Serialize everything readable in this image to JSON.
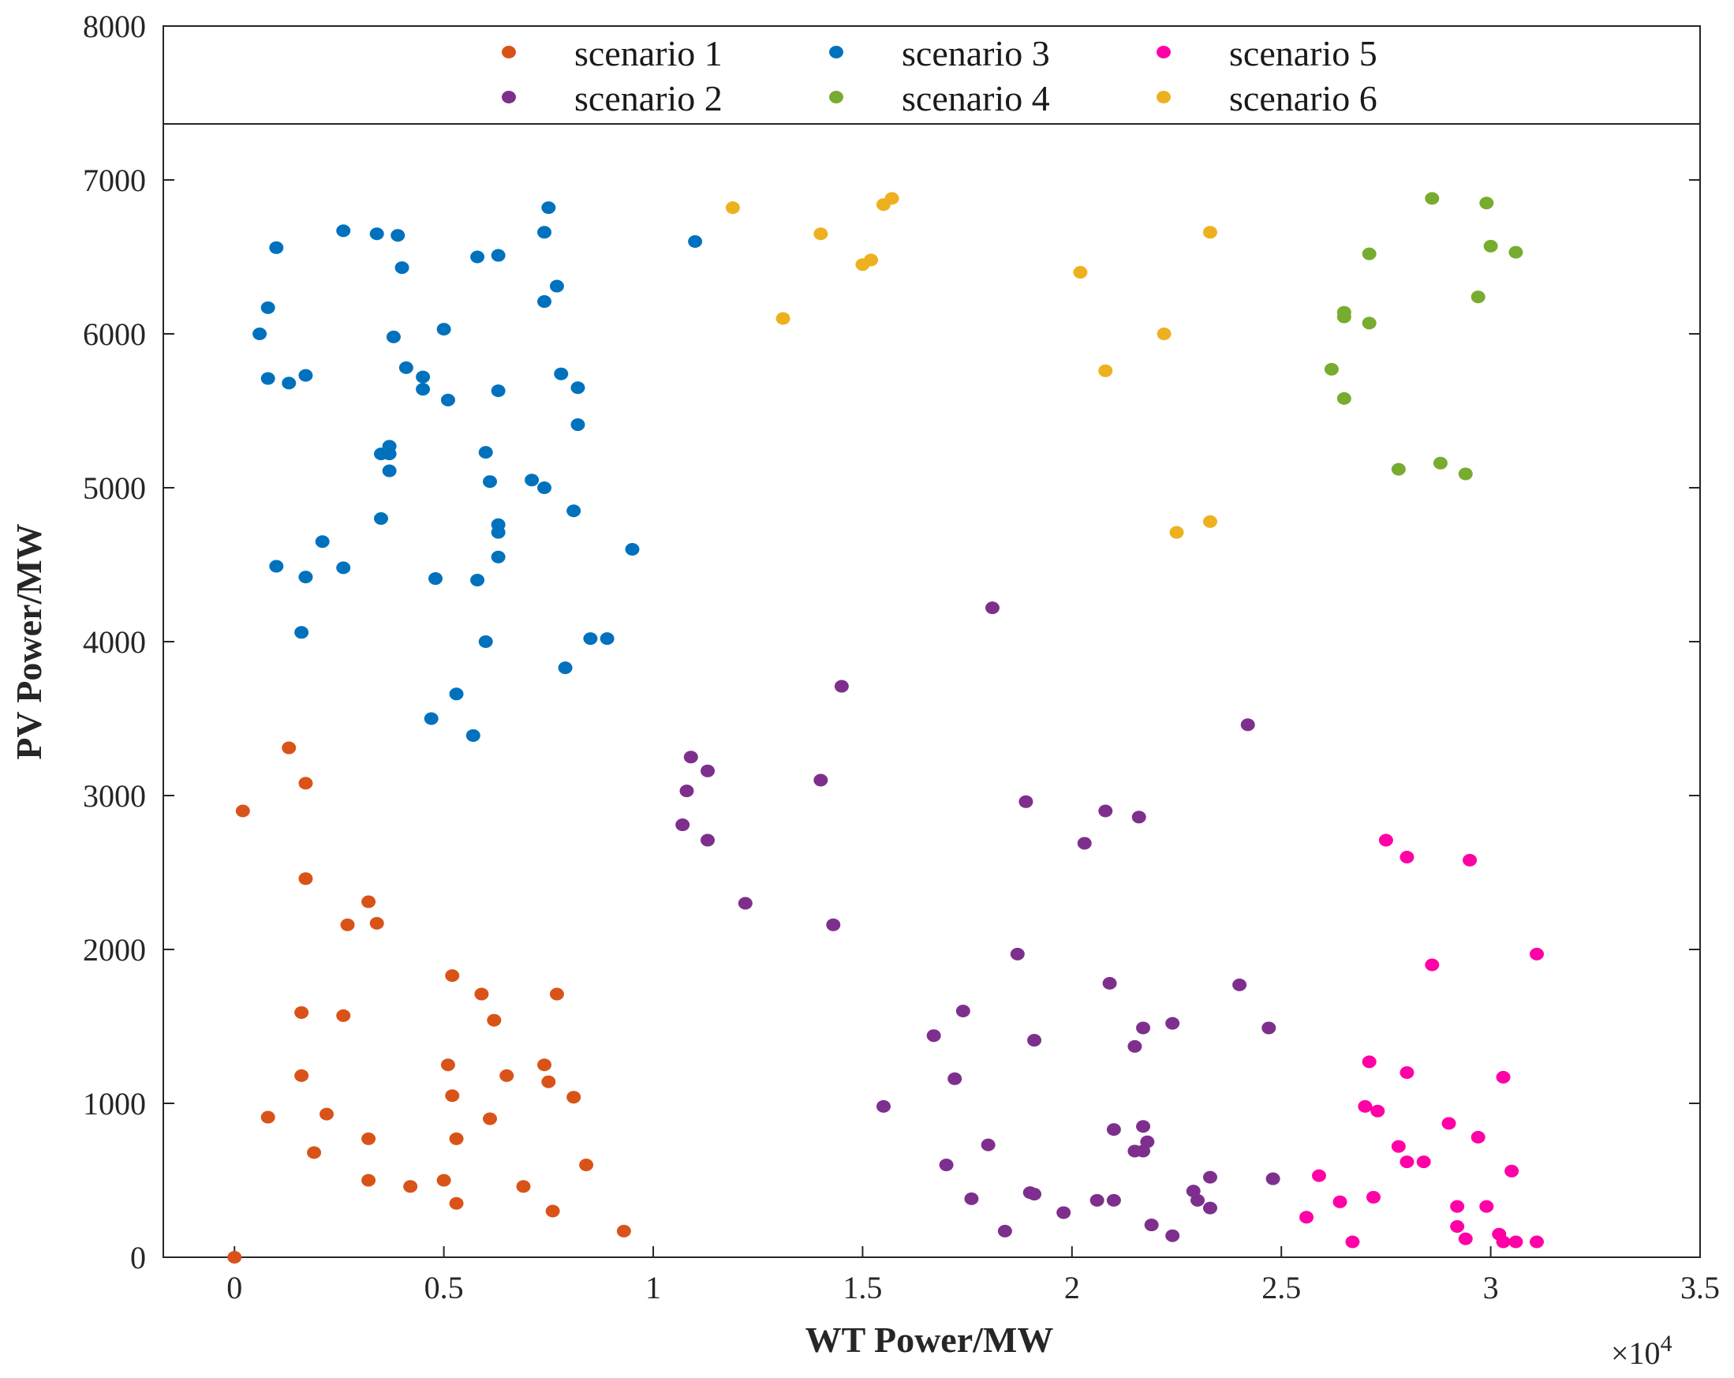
{
  "chart_data": {
    "type": "scatter",
    "title": "",
    "xlabel": "WT Power/MW",
    "ylabel": "PV Power/MW",
    "x_scale_label": "×10",
    "x_scale_exponent": "4",
    "xlim": [
      -0.17,
      3.5
    ],
    "ylim": [
      0,
      8000
    ],
    "x_ticks": [
      0,
      0.5,
      1,
      1.5,
      2,
      2.5,
      3,
      3.5
    ],
    "x_tick_labels": [
      "0",
      "0.5",
      "1",
      "1.5",
      "2",
      "2.5",
      "3",
      "3.5"
    ],
    "y_ticks": [
      0,
      1000,
      2000,
      3000,
      4000,
      5000,
      6000,
      7000,
      8000
    ],
    "y_tick_labels": [
      "0",
      "1000",
      "2000",
      "3000",
      "4000",
      "5000",
      "6000",
      "7000",
      "8000"
    ],
    "legend_position": "top",
    "series": [
      {
        "name": "scenario 1",
        "color": "#D95319",
        "points": [
          [
            0.0,
            0
          ],
          [
            0.02,
            2900
          ],
          [
            0.08,
            910
          ],
          [
            0.13,
            3310
          ],
          [
            0.16,
            1590
          ],
          [
            0.16,
            1180
          ],
          [
            0.17,
            3080
          ],
          [
            0.17,
            2460
          ],
          [
            0.19,
            680
          ],
          [
            0.22,
            930
          ],
          [
            0.26,
            1570
          ],
          [
            0.27,
            2160
          ],
          [
            0.32,
            2310
          ],
          [
            0.32,
            770
          ],
          [
            0.32,
            500
          ],
          [
            0.34,
            2170
          ],
          [
            0.42,
            460
          ],
          [
            0.5,
            500
          ],
          [
            0.51,
            1250
          ],
          [
            0.52,
            1830
          ],
          [
            0.52,
            1050
          ],
          [
            0.53,
            770
          ],
          [
            0.53,
            350
          ],
          [
            0.59,
            1710
          ],
          [
            0.61,
            900
          ],
          [
            0.62,
            1540
          ],
          [
            0.65,
            1180
          ],
          [
            0.69,
            460
          ],
          [
            0.74,
            1250
          ],
          [
            0.75,
            1140
          ],
          [
            0.76,
            300
          ],
          [
            0.77,
            1710
          ],
          [
            0.81,
            1040
          ],
          [
            0.84,
            600
          ],
          [
            0.93,
            170
          ]
        ]
      },
      {
        "name": "scenario 2",
        "color": "#7E2F8E",
        "points": [
          [
            1.07,
            2810
          ],
          [
            1.08,
            3030
          ],
          [
            1.09,
            3250
          ],
          [
            1.13,
            3160
          ],
          [
            1.13,
            2710
          ],
          [
            1.22,
            2300
          ],
          [
            1.4,
            3100
          ],
          [
            1.43,
            2160
          ],
          [
            1.45,
            3710
          ],
          [
            1.55,
            980
          ],
          [
            1.67,
            1440
          ],
          [
            1.7,
            600
          ],
          [
            1.72,
            1160
          ],
          [
            1.74,
            1600
          ],
          [
            1.76,
            380
          ],
          [
            1.8,
            730
          ],
          [
            1.81,
            4220
          ],
          [
            1.84,
            170
          ],
          [
            1.87,
            1970
          ],
          [
            1.89,
            2960
          ],
          [
            1.9,
            420
          ],
          [
            1.91,
            1410
          ],
          [
            1.91,
            410
          ],
          [
            1.98,
            290
          ],
          [
            2.03,
            2690
          ],
          [
            2.06,
            370
          ],
          [
            2.08,
            2900
          ],
          [
            2.09,
            1780
          ],
          [
            2.1,
            830
          ],
          [
            2.1,
            370
          ],
          [
            2.15,
            1370
          ],
          [
            2.16,
            2860
          ],
          [
            2.17,
            1490
          ],
          [
            2.17,
            850
          ],
          [
            2.17,
            690
          ],
          [
            2.18,
            750
          ],
          [
            2.19,
            210
          ],
          [
            2.24,
            1520
          ],
          [
            2.24,
            140
          ],
          [
            2.29,
            430
          ],
          [
            2.3,
            370
          ],
          [
            2.33,
            520
          ],
          [
            2.33,
            320
          ],
          [
            2.4,
            1770
          ],
          [
            2.42,
            3460
          ],
          [
            2.47,
            1490
          ],
          [
            2.48,
            510
          ],
          [
            2.15,
            690
          ]
        ]
      },
      {
        "name": "scenario 3",
        "color": "#0072BD",
        "points": [
          [
            0.06,
            6000
          ],
          [
            0.08,
            6170
          ],
          [
            0.08,
            5710
          ],
          [
            0.1,
            6560
          ],
          [
            0.1,
            4490
          ],
          [
            0.13,
            5680
          ],
          [
            0.16,
            4060
          ],
          [
            0.17,
            5730
          ],
          [
            0.17,
            4420
          ],
          [
            0.21,
            4650
          ],
          [
            0.26,
            6670
          ],
          [
            0.26,
            4480
          ],
          [
            0.34,
            6650
          ],
          [
            0.35,
            5220
          ],
          [
            0.35,
            4800
          ],
          [
            0.37,
            5270
          ],
          [
            0.37,
            5220
          ],
          [
            0.37,
            5110
          ],
          [
            0.38,
            5980
          ],
          [
            0.39,
            6640
          ],
          [
            0.4,
            6430
          ],
          [
            0.41,
            5780
          ],
          [
            0.45,
            5720
          ],
          [
            0.45,
            5640
          ],
          [
            0.47,
            3500
          ],
          [
            0.48,
            4410
          ],
          [
            0.5,
            6030
          ],
          [
            0.51,
            5570
          ],
          [
            0.53,
            3660
          ],
          [
            0.57,
            3390
          ],
          [
            0.58,
            4400
          ],
          [
            0.58,
            6500
          ],
          [
            0.6,
            5230
          ],
          [
            0.6,
            4000
          ],
          [
            0.61,
            5040
          ],
          [
            0.63,
            6510
          ],
          [
            0.63,
            5630
          ],
          [
            0.63,
            4760
          ],
          [
            0.63,
            4710
          ],
          [
            0.63,
            4550
          ],
          [
            0.71,
            5050
          ],
          [
            0.74,
            6660
          ],
          [
            0.74,
            6210
          ],
          [
            0.74,
            5000
          ],
          [
            0.75,
            6820
          ],
          [
            0.77,
            6310
          ],
          [
            0.78,
            5740
          ],
          [
            0.79,
            3830
          ],
          [
            0.81,
            4850
          ],
          [
            0.82,
            5650
          ],
          [
            0.82,
            5410
          ],
          [
            0.85,
            4020
          ],
          [
            0.89,
            4020
          ],
          [
            0.95,
            4600
          ],
          [
            1.1,
            6600
          ]
        ]
      },
      {
        "name": "scenario 4",
        "color": "#77AC30",
        "points": [
          [
            2.62,
            5770
          ],
          [
            2.65,
            6140
          ],
          [
            2.65,
            6110
          ],
          [
            2.65,
            5580
          ],
          [
            2.71,
            6520
          ],
          [
            2.71,
            6070
          ],
          [
            2.78,
            5120
          ],
          [
            2.86,
            6880
          ],
          [
            2.88,
            5160
          ],
          [
            2.94,
            5090
          ],
          [
            2.97,
            6240
          ],
          [
            2.99,
            6850
          ],
          [
            3.0,
            6570
          ],
          [
            3.06,
            6530
          ]
        ]
      },
      {
        "name": "scenario 5",
        "color": "#FF00A6",
        "points": [
          [
            2.56,
            260
          ],
          [
            2.59,
            530
          ],
          [
            2.64,
            360
          ],
          [
            2.67,
            100
          ],
          [
            2.7,
            980
          ],
          [
            2.71,
            1270
          ],
          [
            2.72,
            390
          ],
          [
            2.73,
            950
          ],
          [
            2.75,
            2710
          ],
          [
            2.78,
            720
          ],
          [
            2.8,
            2600
          ],
          [
            2.8,
            1200
          ],
          [
            2.8,
            620
          ],
          [
            2.84,
            620
          ],
          [
            2.86,
            1900
          ],
          [
            2.9,
            870
          ],
          [
            2.92,
            330
          ],
          [
            2.92,
            200
          ],
          [
            2.94,
            120
          ],
          [
            2.95,
            2580
          ],
          [
            2.97,
            780
          ],
          [
            2.99,
            330
          ],
          [
            3.02,
            150
          ],
          [
            3.03,
            1170
          ],
          [
            3.03,
            100
          ],
          [
            3.05,
            560
          ],
          [
            3.06,
            100
          ],
          [
            3.11,
            1970
          ],
          [
            3.11,
            100
          ]
        ]
      },
      {
        "name": "scenario 6",
        "color": "#EDB120",
        "points": [
          [
            1.19,
            6820
          ],
          [
            1.31,
            6100
          ],
          [
            1.4,
            6650
          ],
          [
            1.5,
            6450
          ],
          [
            1.52,
            6480
          ],
          [
            1.55,
            6840
          ],
          [
            1.57,
            6880
          ],
          [
            2.02,
            6400
          ],
          [
            2.08,
            5760
          ],
          [
            2.22,
            6000
          ],
          [
            2.25,
            4710
          ],
          [
            2.33,
            6660
          ],
          [
            2.33,
            4780
          ]
        ]
      }
    ]
  }
}
